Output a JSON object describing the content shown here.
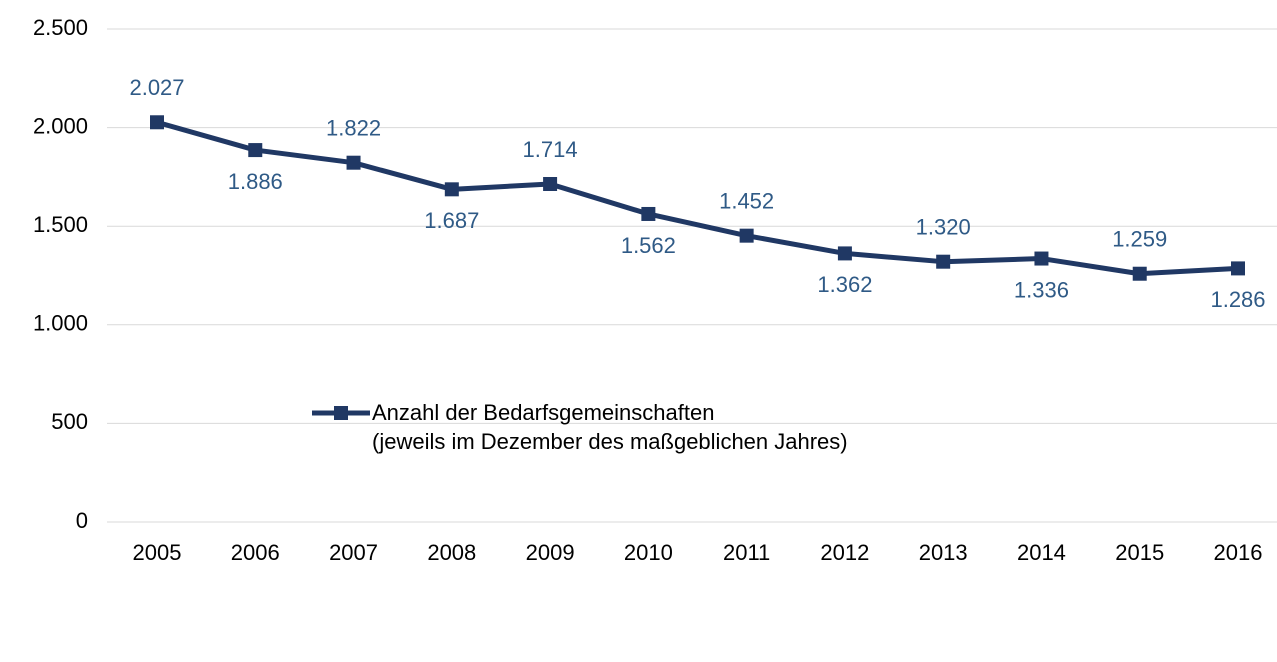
{
  "chart_data": {
    "type": "line",
    "categories": [
      "2005",
      "2006",
      "2007",
      "2008",
      "2009",
      "2010",
      "2011",
      "2012",
      "2013",
      "2014",
      "2015",
      "2016"
    ],
    "series": [
      {
        "name": "Anzahl der Bedarfsgemeinschaften\n(jeweils im Dezember des maßgeblichen Jahres)",
        "color": "#203864",
        "values": [
          2027,
          1886,
          1822,
          1687,
          1714,
          1562,
          1452,
          1362,
          1320,
          1336,
          1259,
          1286
        ],
        "value_labels": [
          "2.027",
          "1.886",
          "1.822",
          "1.687",
          "1.714",
          "1.562",
          "1.452",
          "1.362",
          "1.320",
          "1.336",
          "1.259",
          "1.286"
        ]
      }
    ],
    "ylim": [
      0,
      2500
    ],
    "yticks": [
      0,
      500,
      {
        "value": 1000,
        "label": "1.000"
      },
      {
        "value": 1500,
        "label": "1.500"
      },
      {
        "value": 2000,
        "label": "2.000"
      },
      {
        "value": 2500,
        "label": "2.500"
      }
    ],
    "grid": true,
    "legend": "bottom"
  }
}
